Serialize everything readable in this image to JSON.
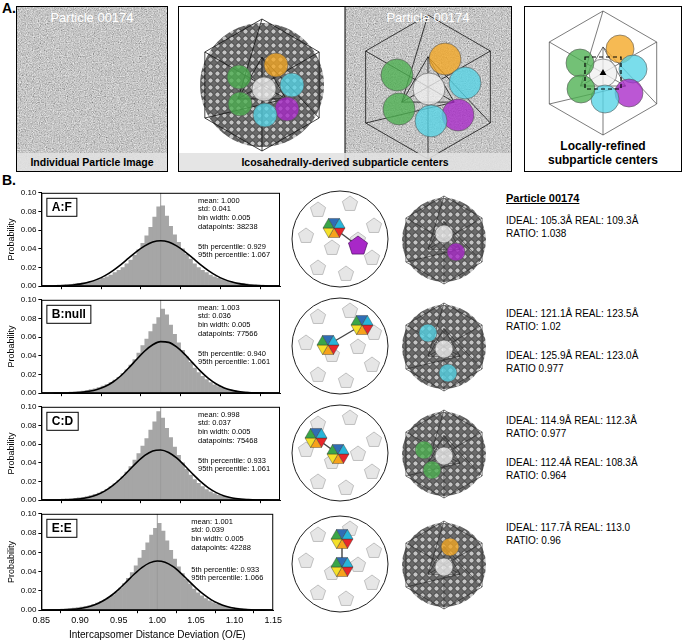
{
  "panel_labels": [
    "A.",
    "B."
  ],
  "panel_a": {
    "images": [
      {
        "title": "Particle 00174",
        "caption": "Individual Particle Image"
      },
      {
        "title": "Particle 00174",
        "caption": "Icosahedrally-derived subparticle centers"
      },
      {
        "caption": "Locally-refined subparticle centers"
      }
    ]
  },
  "chart_data": [
    {
      "type": "histogram",
      "label": "A:F",
      "y_label": "Probability",
      "bins": [
        0.85,
        0.855,
        0.86,
        0.865,
        0.87,
        0.875,
        0.88,
        0.885,
        0.89,
        0.895,
        0.9,
        0.905,
        0.91,
        0.915,
        0.92,
        0.925,
        0.93,
        0.935,
        0.94,
        0.945,
        0.95,
        0.955,
        0.96,
        0.965,
        0.97,
        0.975,
        0.98,
        0.985,
        0.99,
        0.995,
        1,
        1.005,
        1.01,
        1.015,
        1.02,
        1.025,
        1.03,
        1.035,
        1.04,
        1.045,
        1.05,
        1.055,
        1.06,
        1.065,
        1.07,
        1.075,
        1.08,
        1.085,
        1.09,
        1.095,
        1.1,
        1.105,
        1.11,
        1.115,
        1.12,
        1.125,
        1.13,
        1.135,
        1.14,
        1.145,
        1.15
      ],
      "values": [
        0.0006,
        0.0007,
        0.0008,
        0.001,
        0.0012,
        0.0014,
        0.0017,
        0.002,
        0.0025,
        0.003,
        0.0035,
        0.0042,
        0.005,
        0.006,
        0.007,
        0.0085,
        0.01,
        0.012,
        0.0145,
        0.017,
        0.02,
        0.024,
        0.028,
        0.033,
        0.039,
        0.046,
        0.054,
        0.063,
        0.074,
        0.085,
        0.086,
        0.075,
        0.064,
        0.055,
        0.047,
        0.04,
        0.034,
        0.029,
        0.024,
        0.02,
        0.017,
        0.0145,
        0.012,
        0.01,
        0.0085,
        0.007,
        0.006,
        0.005,
        0.0042,
        0.0035,
        0.003,
        0.0025,
        0.002,
        0.0017,
        0.0014,
        0.0012,
        0.001,
        0.0008,
        0.0007,
        0.0006
      ],
      "color": "#a6a6a6",
      "fit": {
        "x": [
          0.85,
          0.86,
          0.87,
          0.88,
          0.89,
          0.9,
          0.91,
          0.92,
          0.93,
          0.94,
          0.95,
          0.96,
          0.97,
          0.98,
          0.99,
          1,
          1.01,
          1.02,
          1.03,
          1.04,
          1.05,
          1.06,
          1.07,
          1.08,
          1.09,
          1.1,
          1.11,
          1.12,
          1.13,
          1.14,
          1.15
        ],
        "values": [
          0.0001,
          0.0001,
          0.0003,
          0.0007,
          0.0013,
          0.0025,
          0.0044,
          0.0073,
          0.0113,
          0.0167,
          0.0231,
          0.0303,
          0.0373,
          0.0432,
          0.0473,
          0.0487,
          0.0473,
          0.0432,
          0.0373,
          0.0303,
          0.0231,
          0.0167,
          0.0113,
          0.0073,
          0.0044,
          0.0025,
          0.0013,
          0.0007,
          0.0003,
          0.0001,
          0.0001
        ],
        "color": "#000000"
      },
      "reference_line": {
        "x": 1,
        "color": "#9a9a9a"
      },
      "stats": [
        "mean: 1.000",
        "std: 0.041",
        "bin width: 0.005",
        "datapoints: 38238"
      ],
      "percentiles": [
        "5th percentile: 0.929",
        "95th percentile: 1.067"
      ],
      "xlim": [
        0.85,
        1.15
      ],
      "xticks": [
        0.85,
        {
          "value": 0.9,
          "label": "0.90"
        },
        0.95,
        {
          "value": 1,
          "label": "1.00"
        },
        1.05,
        {
          "value": 1.1,
          "label": "1.10"
        },
        1.15
      ],
      "ylim": [
        0,
        0.1
      ],
      "yticks": [
        {
          "value": 0,
          "label": "0.00"
        },
        0.02,
        0.04,
        0.06,
        0.08,
        {
          "value": 0.1,
          "label": "0.10"
        }
      ],
      "grid": false,
      "tick_labels": "y"
    },
    {
      "type": "histogram",
      "label": "B:null",
      "y_label": "Probability",
      "bins": [
        0.85,
        0.855,
        0.86,
        0.865,
        0.87,
        0.875,
        0.88,
        0.885,
        0.89,
        0.895,
        0.9,
        0.905,
        0.91,
        0.915,
        0.92,
        0.925,
        0.93,
        0.935,
        0.94,
        0.945,
        0.95,
        0.955,
        0.96,
        0.965,
        0.97,
        0.975,
        0.98,
        0.985,
        0.99,
        0.995,
        1,
        1.005,
        1.01,
        1.015,
        1.02,
        1.025,
        1.03,
        1.035,
        1.04,
        1.045,
        1.05,
        1.055,
        1.06,
        1.065,
        1.07,
        1.075,
        1.08,
        1.085,
        1.09,
        1.095,
        1.1,
        1.105,
        1.11,
        1.115,
        1.12,
        1.125,
        1.13,
        1.135,
        1.14,
        1.145,
        1.15
      ],
      "values": [
        0.0003,
        0.0003,
        0.0004,
        0.0005,
        0.0006,
        0.0007,
        0.0009,
        0.0011,
        0.0014,
        0.0018,
        0.0023,
        0.003,
        0.0038,
        0.0048,
        0.006,
        0.0075,
        0.0093,
        0.0115,
        0.014,
        0.017,
        0.021,
        0.025,
        0.03,
        0.036,
        0.043,
        0.051,
        0.058,
        0.066,
        0.074,
        0.081,
        0.09,
        0.084,
        0.073,
        0.063,
        0.054,
        0.046,
        0.039,
        0.033,
        0.027,
        0.022,
        0.018,
        0.0145,
        0.0115,
        0.009,
        0.007,
        0.0055,
        0.0043,
        0.0034,
        0.0027,
        0.0021,
        0.0017,
        0.0013,
        0.001,
        0.0008,
        0.0006,
        0.0005,
        0.0004,
        0.0003,
        0.0003,
        0.0002
      ],
      "color": "#a6a6a6",
      "fit": {
        "x": [
          0.85,
          0.86,
          0.87,
          0.88,
          0.89,
          0.9,
          0.91,
          0.92,
          0.93,
          0.94,
          0.95,
          0.96,
          0.97,
          0.98,
          0.99,
          1,
          1.01,
          1.02,
          1.03,
          1.04,
          1.05,
          1.06,
          1.07,
          1.08,
          1.09,
          1.1,
          1.11,
          1.12,
          1.13,
          1.14,
          1.15
        ],
        "values": [
          0,
          0,
          0.0001,
          0.0002,
          0.0004,
          0.0009,
          0.002,
          0.0039,
          0.0071,
          0.012,
          0.0187,
          0.0272,
          0.0364,
          0.0452,
          0.0519,
          0.0552,
          0.0544,
          0.0495,
          0.0418,
          0.0327,
          0.0236,
          0.0158,
          0.0098,
          0.0056,
          0.003,
          0.0015,
          0.0007,
          0.0003,
          0.0001,
          0,
          0
        ],
        "color": "#000000"
      },
      "reference_line": {
        "x": 1,
        "color": "#9a9a9a"
      },
      "stats": [
        "mean: 1.003",
        "std: 0.036",
        "bin width: 0.005",
        "datapoints: 77566"
      ],
      "percentiles": [
        "5th percentile: 0.940",
        "95th percentile: 1.061"
      ],
      "xlim": [
        0.85,
        1.15
      ],
      "xticks": [
        0.85,
        {
          "value": 0.9,
          "label": "0.90"
        },
        0.95,
        {
          "value": 1,
          "label": "1.00"
        },
        1.05,
        {
          "value": 1.1,
          "label": "1.10"
        },
        1.15
      ],
      "ylim": [
        0,
        0.1
      ],
      "yticks": [
        {
          "value": 0,
          "label": "0.00"
        },
        0.02,
        0.04,
        0.06,
        0.08,
        {
          "value": 0.1,
          "label": "0.10"
        }
      ],
      "grid": false,
      "tick_labels": "y"
    },
    {
      "type": "histogram",
      "label": "C:D",
      "y_label": "Probability",
      "bins": [
        0.85,
        0.855,
        0.86,
        0.865,
        0.87,
        0.875,
        0.88,
        0.885,
        0.89,
        0.895,
        0.9,
        0.905,
        0.91,
        0.915,
        0.92,
        0.925,
        0.93,
        0.935,
        0.94,
        0.945,
        0.95,
        0.955,
        0.96,
        0.965,
        0.97,
        0.975,
        0.98,
        0.985,
        0.99,
        0.995,
        1,
        1.005,
        1.01,
        1.015,
        1.02,
        1.025,
        1.03,
        1.035,
        1.04,
        1.045,
        1.05,
        1.055,
        1.06,
        1.065,
        1.07,
        1.075,
        1.08,
        1.085,
        1.09,
        1.095,
        1.1,
        1.105,
        1.11,
        1.115,
        1.12,
        1.125,
        1.13,
        1.135,
        1.14,
        1.145,
        1.15
      ],
      "values": [
        0.0004,
        0.0005,
        0.0006,
        0.0007,
        0.0009,
        0.0011,
        0.0014,
        0.0017,
        0.0021,
        0.0026,
        0.0032,
        0.004,
        0.005,
        0.0062,
        0.0077,
        0.0095,
        0.0117,
        0.0143,
        0.0175,
        0.021,
        0.025,
        0.03,
        0.036,
        0.043,
        0.05,
        0.058,
        0.066,
        0.075,
        0.084,
        0.095,
        0.088,
        0.077,
        0.067,
        0.057,
        0.048,
        0.04,
        0.033,
        0.027,
        0.022,
        0.018,
        0.0145,
        0.0115,
        0.009,
        0.007,
        0.0055,
        0.0043,
        0.0034,
        0.0027,
        0.0021,
        0.0017,
        0.0013,
        0.001,
        0.0008,
        0.0007,
        0.0006,
        0.0005,
        0.0004,
        0.0003,
        0.0003,
        0.0002
      ],
      "color": "#a6a6a6",
      "fit": {
        "x": [
          0.85,
          0.86,
          0.87,
          0.88,
          0.89,
          0.9,
          0.91,
          0.92,
          0.93,
          0.94,
          0.95,
          0.96,
          0.97,
          0.98,
          0.99,
          1,
          1.01,
          1.02,
          1.03,
          1.04,
          1.05,
          1.06,
          1.07,
          1.08,
          1.09,
          1.1,
          1.11,
          1.12,
          1.13,
          1.14,
          1.15
        ],
        "values": [
          0,
          0.0001,
          0.0001,
          0.0003,
          0.0008,
          0.0016,
          0.0032,
          0.0058,
          0.01,
          0.0158,
          0.0232,
          0.0318,
          0.0405,
          0.0479,
          0.0527,
          0.0538,
          0.0511,
          0.0452,
          0.0371,
          0.0283,
          0.0201,
          0.0132,
          0.0081,
          0.0046,
          0.0024,
          0.0012,
          0.0006,
          0.0002,
          0.0001,
          0,
          0
        ],
        "color": "#000000"
      },
      "reference_line": {
        "x": 1,
        "color": "#9a9a9a"
      },
      "stats": [
        "mean: 0.998",
        "std: 0.037",
        "bin width: 0.005",
        "datapoints: 75468"
      ],
      "percentiles": [
        "5th percentile: 0.933",
        "95th percentile: 1.061"
      ],
      "xlim": [
        0.85,
        1.15
      ],
      "xticks": [
        0.85,
        {
          "value": 0.9,
          "label": "0.90"
        },
        0.95,
        {
          "value": 1,
          "label": "1.00"
        },
        1.05,
        {
          "value": 1.1,
          "label": "1.10"
        },
        1.15
      ],
      "ylim": [
        0,
        0.1
      ],
      "yticks": [
        {
          "value": 0,
          "label": "0.00"
        },
        0.02,
        0.04,
        0.06,
        0.08,
        {
          "value": 0.1,
          "label": "0.10"
        }
      ],
      "grid": false,
      "tick_labels": "y"
    },
    {
      "type": "histogram",
      "label": "E:E",
      "y_label": "Probability",
      "x_label": "Intercapsomer Distance Deviation (O/E)",
      "bins": [
        0.85,
        0.855,
        0.86,
        0.865,
        0.87,
        0.875,
        0.88,
        0.885,
        0.89,
        0.895,
        0.9,
        0.905,
        0.91,
        0.915,
        0.92,
        0.925,
        0.93,
        0.935,
        0.94,
        0.945,
        0.95,
        0.955,
        0.96,
        0.965,
        0.97,
        0.975,
        0.98,
        0.985,
        0.99,
        0.995,
        1,
        1.005,
        1.01,
        1.015,
        1.02,
        1.025,
        1.03,
        1.035,
        1.04,
        1.045,
        1.05,
        1.055,
        1.06,
        1.065,
        1.07,
        1.075,
        1.08,
        1.085,
        1.09,
        1.095,
        1.1,
        1.105,
        1.11,
        1.115,
        1.12,
        1.125,
        1.13,
        1.135,
        1.14,
        1.145,
        1.15
      ],
      "values": [
        0.0005,
        0.0006,
        0.0007,
        0.0008,
        0.001,
        0.0012,
        0.0015,
        0.0018,
        0.0022,
        0.0027,
        0.0033,
        0.004,
        0.0049,
        0.006,
        0.0073,
        0.0089,
        0.0108,
        0.013,
        0.0157,
        0.019,
        0.023,
        0.0275,
        0.033,
        0.039,
        0.046,
        0.054,
        0.062,
        0.07,
        0.078,
        0.085,
        0.09,
        0.082,
        0.072,
        0.062,
        0.053,
        0.045,
        0.038,
        0.032,
        0.027,
        0.022,
        0.018,
        0.015,
        0.012,
        0.0097,
        0.0078,
        0.0062,
        0.005,
        0.004,
        0.0032,
        0.0026,
        0.0021,
        0.0017,
        0.0014,
        0.0011,
        0.0009,
        0.0007,
        0.0006,
        0.0005,
        0.0004,
        0.0003
      ],
      "color": "#a6a6a6",
      "fit": {
        "x": [
          0.85,
          0.86,
          0.87,
          0.88,
          0.89,
          0.9,
          0.91,
          0.92,
          0.93,
          0.94,
          0.95,
          0.96,
          0.97,
          0.98,
          0.99,
          1,
          1.01,
          1.02,
          1.03,
          1.04,
          1.05,
          1.06,
          1.07,
          1.08,
          1.09,
          1.1,
          1.11,
          1.12,
          1.13,
          1.14,
          1.15
        ],
        "values": [
          0,
          0.0001,
          0.0002,
          0.0004,
          0.0009,
          0.0018,
          0.0034,
          0.0059,
          0.0098,
          0.015,
          0.0217,
          0.0294,
          0.0373,
          0.0442,
          0.0491,
          0.0511,
          0.0498,
          0.0454,
          0.0388,
          0.031,
          0.0232,
          0.0163,
          0.0107,
          0.0066,
          0.0038,
          0.002,
          0.001,
          0.0005,
          0.0002,
          0.0001,
          0
        ],
        "color": "#000000"
      },
      "reference_line": {
        "x": 1,
        "color": "#9a9a9a"
      },
      "stats": [
        "mean: 1.001",
        "std: 0.039",
        "bin width: 0.005",
        "datapoints: 42288"
      ],
      "percentiles": [
        "5th percentile: 0.933",
        "95th percentile: 1.066"
      ],
      "xlim": [
        0.85,
        1.15
      ],
      "xticks": [
        0.85,
        {
          "value": 0.9,
          "label": "0.90"
        },
        0.95,
        {
          "value": 1,
          "label": "1.00"
        },
        1.05,
        {
          "value": 1.1,
          "label": "1.10"
        },
        1.15
      ],
      "ylim": [
        0,
        0.1
      ],
      "yticks": [
        {
          "value": 0,
          "label": "0.00"
        },
        0.02,
        0.04,
        0.06,
        0.08,
        {
          "value": 0.1,
          "label": "0.10"
        }
      ],
      "grid": false
    }
  ],
  "measurements": {
    "title": "Particle 00174",
    "rows": [
      [
        [
          "IDEAL: 105.3Å REAL: 109.3Å",
          "RATIO: 1.038"
        ]
      ],
      [
        [
          "IDEAL: 121.1Å REAL: 123.5Å",
          "RATIO: 1.02"
        ],
        [
          "IDEAL: 125.9Å REAL: 123.0Å",
          "RATIO 0.977"
        ]
      ],
      [
        [
          "IDEAL: 114.9Å REAL: 112.3Å",
          "RATIO: 0.977"
        ],
        [
          "IDEAL: 112.4Å REAL: 108.3Å",
          "RATIO: 0.964"
        ]
      ],
      [
        [
          "IDEAL: 117.7Å REAL: 113.0",
          "RATIO: 0.96"
        ]
      ]
    ]
  }
}
